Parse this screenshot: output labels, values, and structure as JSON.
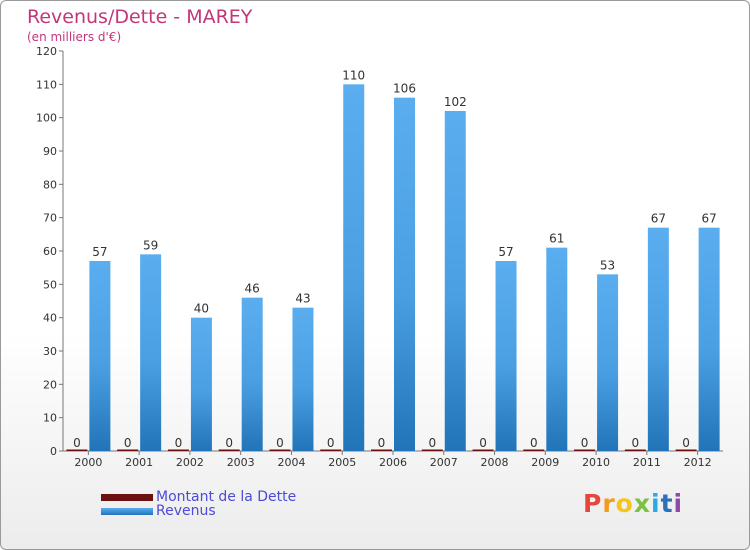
{
  "title": "Revenus/Dette - MAREY",
  "subtitle": "(en milliers d'€)",
  "logo": {
    "letters": [
      "P",
      "r",
      "o",
      "x",
      "i",
      "t",
      "i"
    ],
    "colors": [
      "#e8463c",
      "#f39a1f",
      "#f5c518",
      "#7cc142",
      "#29abe2",
      "#2d6fb8",
      "#8e4aa8"
    ]
  },
  "colors": {
    "title": "#c2377a",
    "dette": "#6b0f0f",
    "revenus_light": "#5aaef0",
    "revenus_dark": "#2274b8",
    "axis_text": "#333333",
    "legend_text": "#4b4bd6"
  },
  "chart_data": {
    "type": "bar",
    "title": "Revenus/Dette - MAREY",
    "subtitle": "(en milliers d'€)",
    "categories": [
      "2000",
      "2001",
      "2002",
      "2003",
      "2004",
      "2005",
      "2006",
      "2007",
      "2008",
      "2009",
      "2010",
      "2011",
      "2012"
    ],
    "series": [
      {
        "name": "Montant de la Dette",
        "values": [
          0,
          0,
          0,
          0,
          0,
          0,
          0,
          0,
          0,
          0,
          0,
          0,
          0
        ]
      },
      {
        "name": "Revenus",
        "values": [
          57,
          59,
          40,
          46,
          43,
          110,
          106,
          102,
          57,
          61,
          53,
          67,
          67
        ]
      }
    ],
    "ylim": [
      0,
      120
    ],
    "yticks": [
      0,
      10,
      20,
      30,
      40,
      50,
      60,
      70,
      80,
      90,
      100,
      110,
      120
    ],
    "grid": false,
    "legend": "bottom-left"
  }
}
